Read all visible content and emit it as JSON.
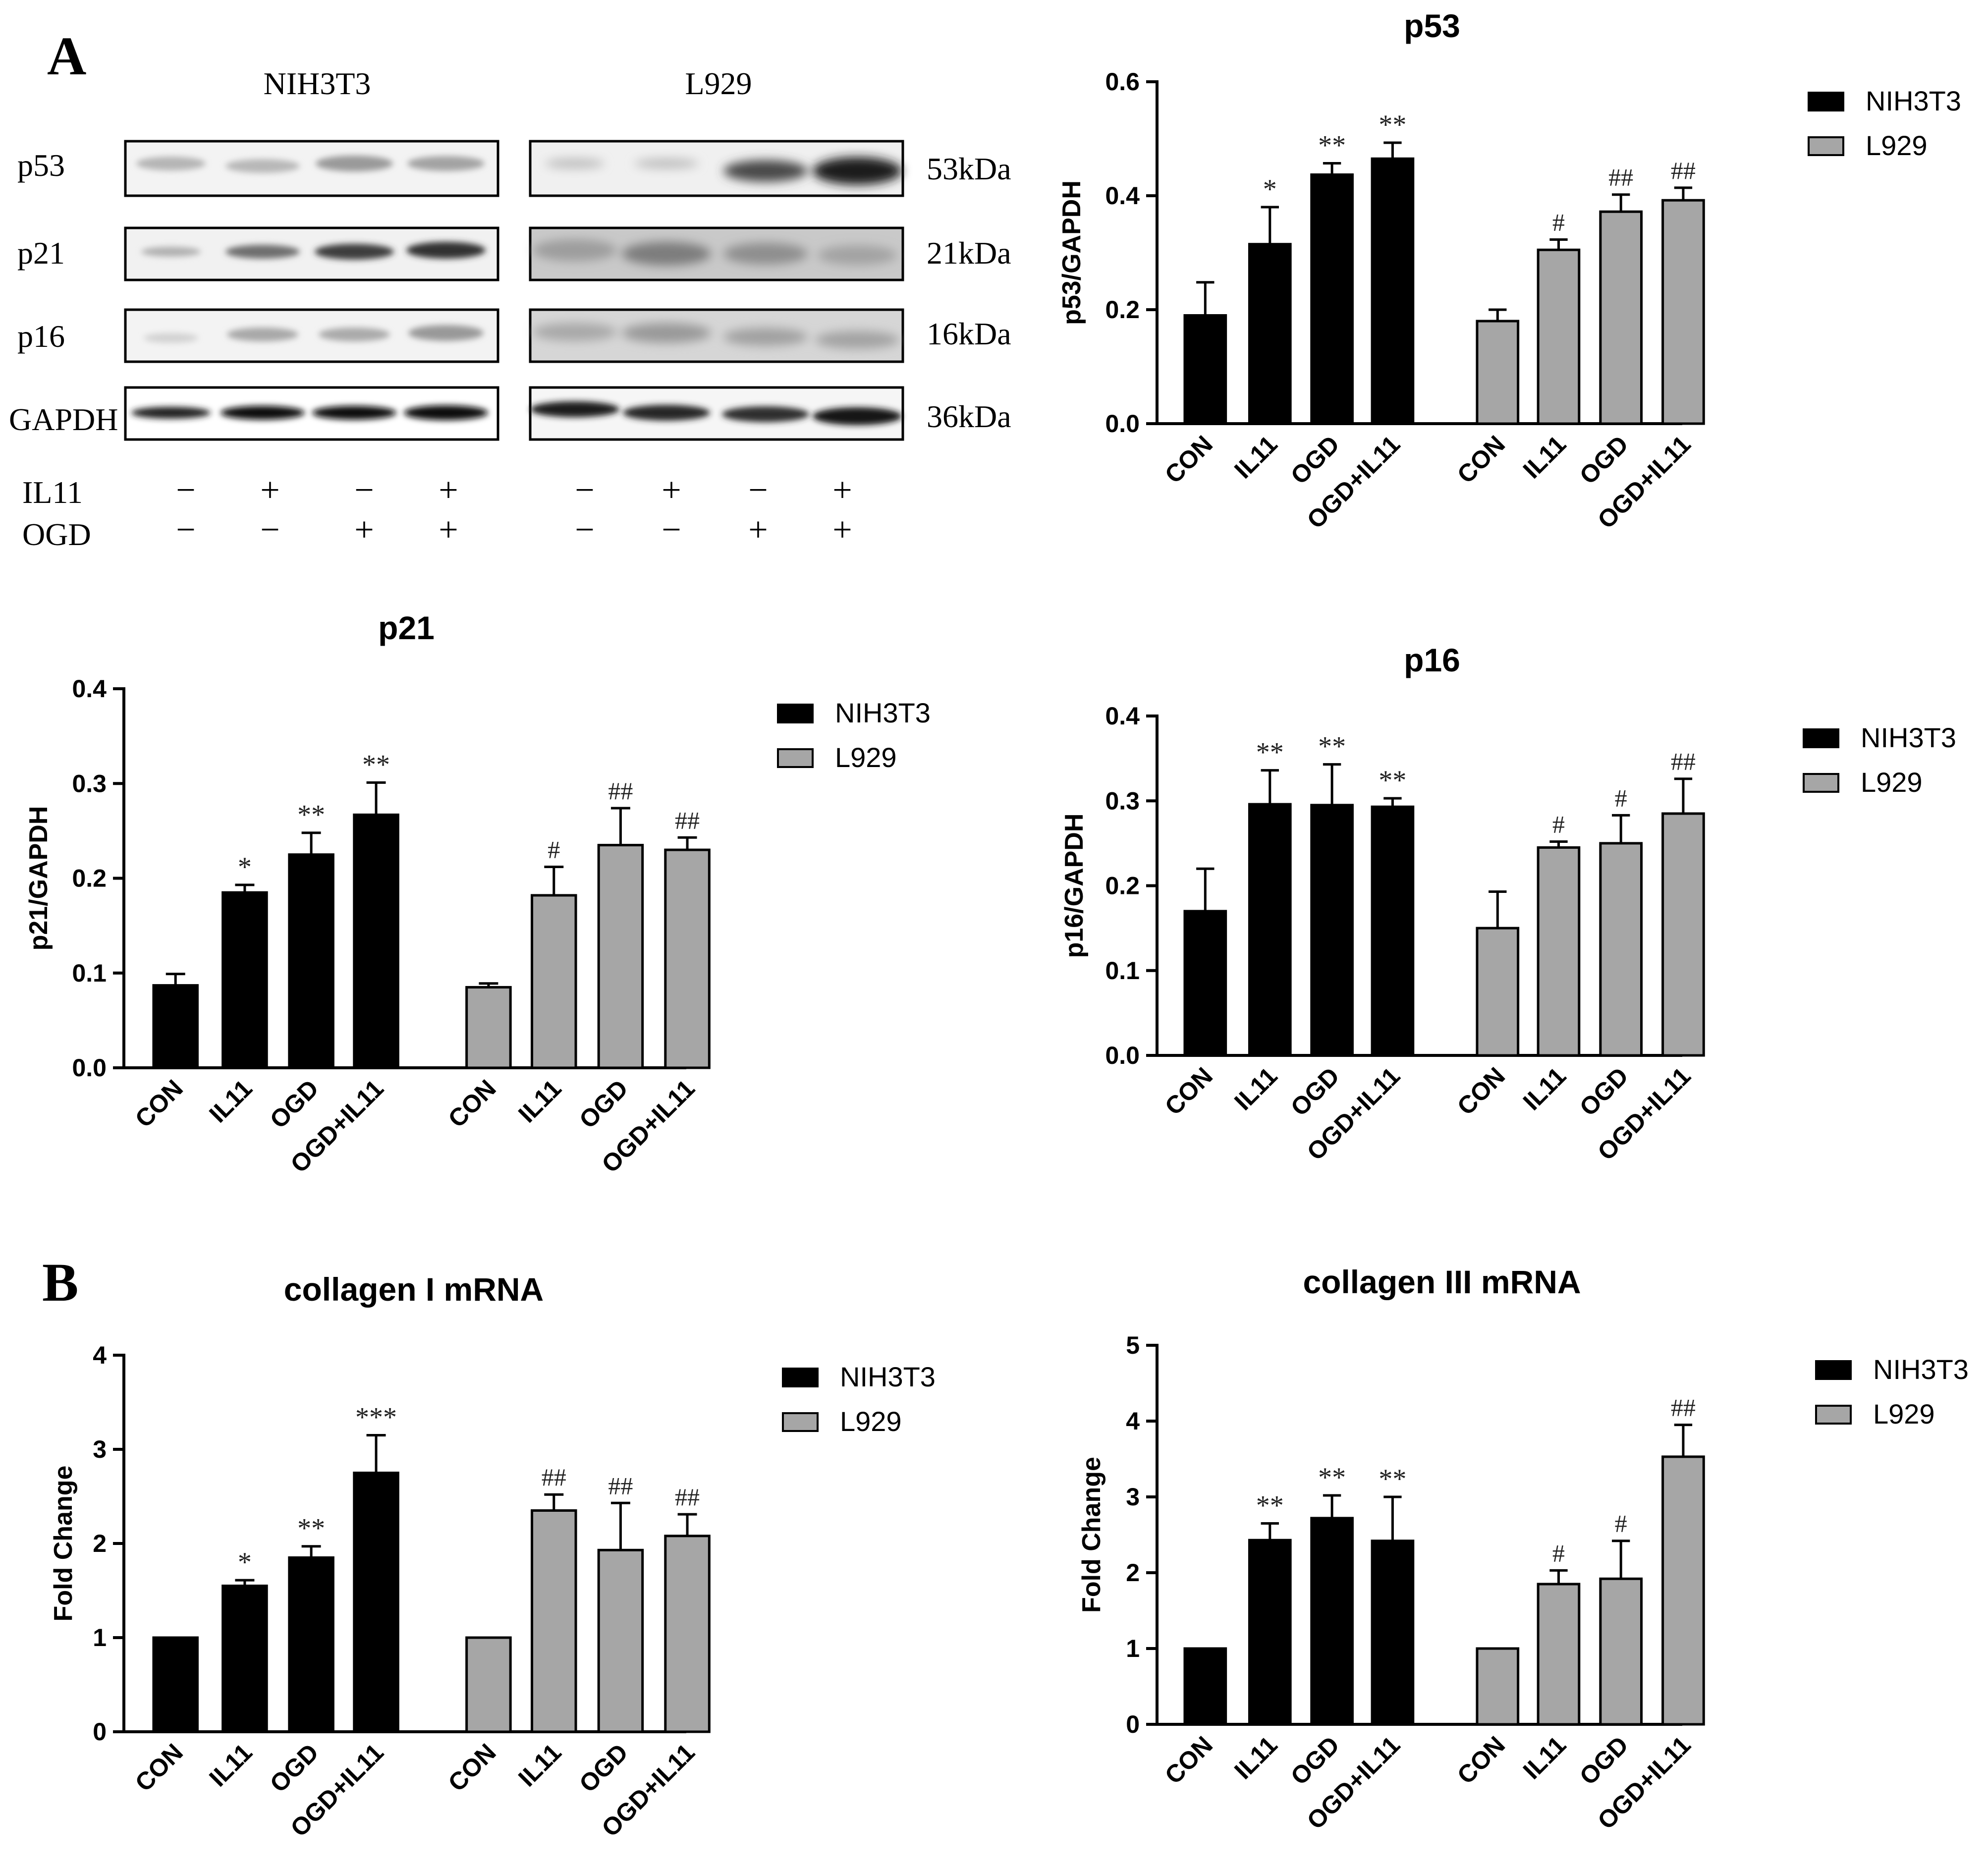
{
  "panel_labels": {
    "a": "A",
    "b": "B"
  },
  "blot": {
    "cell_lines": [
      "NIH3T3",
      "L929"
    ],
    "proteins": [
      {
        "name": "p53",
        "size": "53kDa"
      },
      {
        "name": "p21",
        "size": "21kDa"
      },
      {
        "name": "p16",
        "size": "16kDa"
      },
      {
        "name": "GAPDH",
        "size": "36kDa"
      }
    ],
    "treatments": [
      {
        "label": "IL11",
        "signs": [
          "−",
          "+",
          "−",
          "+"
        ]
      },
      {
        "label": "OGD",
        "signs": [
          "−",
          "−",
          "+",
          "+"
        ]
      }
    ]
  },
  "legend": {
    "series1": "NIH3T3",
    "series2": "L929"
  },
  "colors": {
    "series1": "#000000",
    "series2": "#a6a6a6",
    "axis": "#000000"
  },
  "chart_data": [
    {
      "id": "p53",
      "type": "bar",
      "title": "p53",
      "ylabel": "p53/GAPDH",
      "ylim": [
        0,
        0.6
      ],
      "yticks": [
        "0.0",
        "0.2",
        "0.4",
        "0.6"
      ],
      "categories": [
        "CON",
        "IL11",
        "OGD",
        "OGD+IL11"
      ],
      "series": [
        {
          "name": "NIH3T3",
          "values": [
            0.19,
            0.315,
            0.437,
            0.465
          ],
          "errors": [
            0.058,
            0.065,
            0.02,
            0.028
          ],
          "sig": [
            "",
            "*",
            "**",
            "**"
          ]
        },
        {
          "name": "L929",
          "values": [
            0.18,
            0.305,
            0.372,
            0.392
          ],
          "errors": [
            0.02,
            0.018,
            0.03,
            0.022
          ],
          "sig": [
            "",
            "#",
            "##",
            "##"
          ]
        }
      ]
    },
    {
      "id": "p21",
      "type": "bar",
      "title": "p21",
      "ylabel": "p21/GAPDH",
      "ylim": [
        0,
        0.4
      ],
      "yticks": [
        "0.0",
        "0.1",
        "0.2",
        "0.3",
        "0.4"
      ],
      "categories": [
        "CON",
        "IL11",
        "OGD",
        "OGD+IL11"
      ],
      "series": [
        {
          "name": "NIH3T3",
          "values": [
            0.087,
            0.185,
            0.225,
            0.267
          ],
          "errors": [
            0.012,
            0.008,
            0.023,
            0.034
          ],
          "sig": [
            "",
            "*",
            "**",
            "**"
          ]
        },
        {
          "name": "L929",
          "values": [
            0.085,
            0.182,
            0.235,
            0.23
          ],
          "errors": [
            0.004,
            0.03,
            0.039,
            0.013
          ],
          "sig": [
            "",
            "#",
            "##",
            "##"
          ]
        }
      ]
    },
    {
      "id": "p16",
      "type": "bar",
      "title": "p16",
      "ylabel": "p16/GAPDH",
      "ylim": [
        0,
        0.4
      ],
      "yticks": [
        "0.0",
        "0.1",
        "0.2",
        "0.3",
        "0.4"
      ],
      "categories": [
        "CON",
        "IL11",
        "OGD",
        "OGD+IL11"
      ],
      "series": [
        {
          "name": "NIH3T3",
          "values": [
            0.17,
            0.296,
            0.295,
            0.293
          ],
          "errors": [
            0.05,
            0.04,
            0.048,
            0.01
          ],
          "sig": [
            "",
            "**",
            "**",
            "**"
          ]
        },
        {
          "name": "L929",
          "values": [
            0.15,
            0.245,
            0.25,
            0.285
          ],
          "errors": [
            0.043,
            0.007,
            0.033,
            0.041
          ],
          "sig": [
            "",
            "#",
            "#",
            "##"
          ]
        }
      ]
    },
    {
      "id": "col1",
      "type": "bar",
      "title": "collagen I mRNA",
      "ylabel": "Fold Change",
      "ylim": [
        0,
        4
      ],
      "yticks": [
        "0",
        "1",
        "2",
        "3",
        "4"
      ],
      "categories": [
        "CON",
        "IL11",
        "OGD",
        "OGD+IL11"
      ],
      "series": [
        {
          "name": "NIH3T3",
          "values": [
            1.0,
            1.55,
            1.85,
            2.75
          ],
          "errors": [
            0,
            0.06,
            0.12,
            0.4
          ],
          "sig": [
            "",
            "*",
            "**",
            "***"
          ]
        },
        {
          "name": "L929",
          "values": [
            1.0,
            2.35,
            1.93,
            2.08
          ],
          "errors": [
            0,
            0.17,
            0.5,
            0.23
          ],
          "sig": [
            "",
            "##",
            "##",
            "##"
          ]
        }
      ]
    },
    {
      "id": "col3",
      "type": "bar",
      "title": "collagen III mRNA",
      "ylabel": "Fold Change",
      "ylim": [
        0,
        5
      ],
      "yticks": [
        "0",
        "1",
        "2",
        "3",
        "4",
        "5"
      ],
      "categories": [
        "CON",
        "IL11",
        "OGD",
        "OGD+IL11"
      ],
      "series": [
        {
          "name": "NIH3T3",
          "values": [
            1.0,
            2.43,
            2.72,
            2.42
          ],
          "errors": [
            0,
            0.22,
            0.3,
            0.58
          ],
          "sig": [
            "",
            "**",
            "**",
            "**"
          ]
        },
        {
          "name": "L929",
          "values": [
            1.0,
            1.85,
            1.92,
            3.53
          ],
          "errors": [
            0,
            0.18,
            0.5,
            0.42
          ],
          "sig": [
            "",
            "#",
            "#",
            "##"
          ]
        }
      ]
    }
  ]
}
